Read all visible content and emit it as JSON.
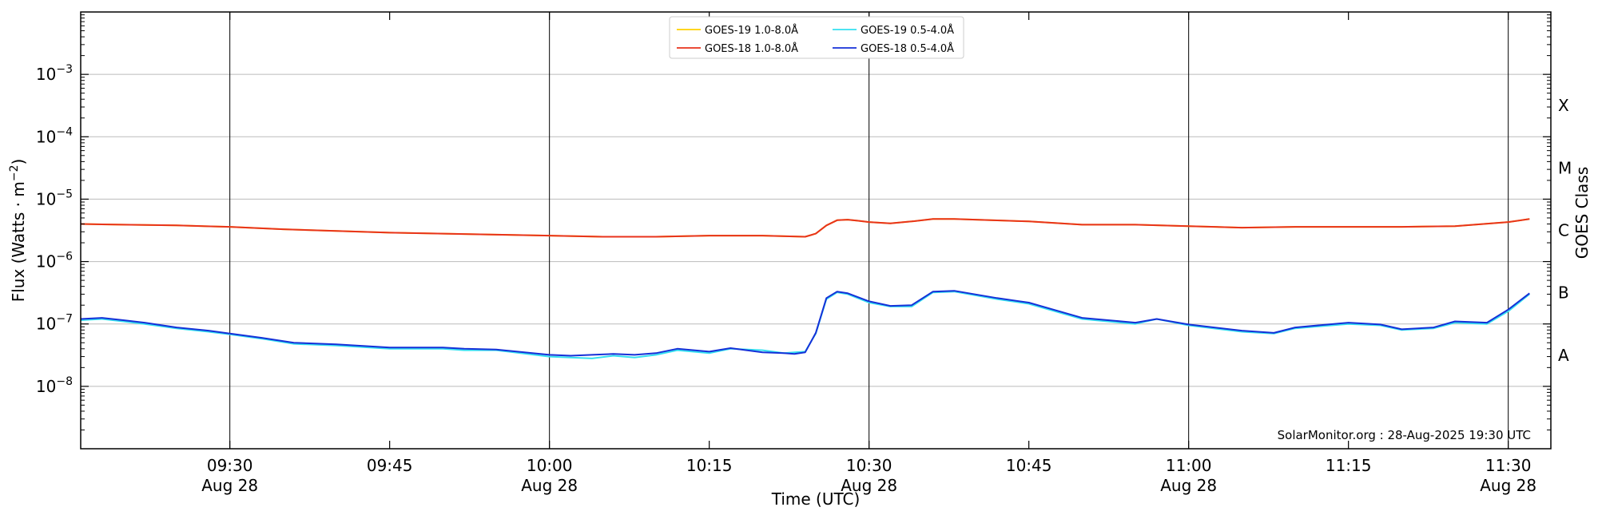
{
  "chart_data": {
    "type": "line",
    "xlabel": "Time (UTC)",
    "ylabel_left": "Flux (Watts · m",
    "ylabel_left_sup": "−2",
    "ylabel_left_end": ")",
    "ylabel_right": "GOES Class",
    "y_scale": "log",
    "ylim": [
      1e-09,
      0.01
    ],
    "xlim": [
      "09:16",
      "11:34"
    ],
    "y_tick_labels": [
      {
        "base": "10",
        "exp": "−3",
        "value": 0.001
      },
      {
        "base": "10",
        "exp": "−4",
        "value": 0.0001
      },
      {
        "base": "10",
        "exp": "−5",
        "value": 1e-05
      },
      {
        "base": "10",
        "exp": "−6",
        "value": 1e-06
      },
      {
        "base": "10",
        "exp": "−7",
        "value": 1e-07
      },
      {
        "base": "10",
        "exp": "−8",
        "value": 1e-08
      }
    ],
    "x_ticks": [
      {
        "time": "09:30",
        "label": "09:30",
        "date": "Aug 28",
        "major": true
      },
      {
        "time": "09:45",
        "label": "09:45",
        "date": "",
        "major": false
      },
      {
        "time": "10:00",
        "label": "10:00",
        "date": "Aug 28",
        "major": true
      },
      {
        "time": "10:15",
        "label": "10:15",
        "date": "",
        "major": false
      },
      {
        "time": "10:30",
        "label": "10:30",
        "date": "Aug 28",
        "major": true
      },
      {
        "time": "10:45",
        "label": "10:45",
        "date": "",
        "major": false
      },
      {
        "time": "11:00",
        "label": "11:00",
        "date": "Aug 28",
        "major": true
      },
      {
        "time": "11:15",
        "label": "11:15",
        "date": "",
        "major": false
      },
      {
        "time": "11:30",
        "label": "11:30",
        "date": "Aug 28",
        "major": true
      }
    ],
    "goes_classes": [
      {
        "label": "X",
        "value": 0.0001
      },
      {
        "label": "M",
        "value": 1e-05
      },
      {
        "label": "C",
        "value": 1e-06
      },
      {
        "label": "B",
        "value": 1e-07
      },
      {
        "label": "A",
        "value": 1e-08
      }
    ],
    "grid": true,
    "legend_position": "top-center",
    "credit": "SolarMonitor.org : 28-Aug-2025 19:30 UTC",
    "series": [
      {
        "name": "GOES-19 1.0-8.0Å",
        "color": "#ffd000",
        "x": [
          "09:16",
          "09:20",
          "09:25",
          "09:30",
          "09:35",
          "09:40",
          "09:45",
          "09:50",
          "09:55",
          "10:00",
          "10:05",
          "10:10",
          "10:15",
          "10:20",
          "10:24",
          "10:25",
          "10:26",
          "10:27",
          "10:28",
          "10:29",
          "10:30",
          "10:32",
          "10:34",
          "10:36",
          "10:38",
          "10:40",
          "10:45",
          "10:50",
          "10:55",
          "11:00",
          "11:05",
          "11:10",
          "11:15",
          "11:20",
          "11:25",
          "11:30",
          "11:32"
        ],
        "values": [
          4e-06,
          3.9e-06,
          3.8e-06,
          3.6e-06,
          3.3e-06,
          3.1e-06,
          2.9e-06,
          2.8e-06,
          2.7e-06,
          2.6e-06,
          2.5e-06,
          2.5e-06,
          2.6e-06,
          2.6e-06,
          2.5e-06,
          2.8e-06,
          3.8e-06,
          4.6e-06,
          4.7e-06,
          4.5e-06,
          4.3e-06,
          4.1e-06,
          4.4e-06,
          4.8e-06,
          4.8e-06,
          4.7e-06,
          4.4e-06,
          3.9e-06,
          3.9e-06,
          3.7e-06,
          3.5e-06,
          3.6e-06,
          3.6e-06,
          3.6e-06,
          3.7e-06,
          4.3e-06,
          4.8e-06
        ]
      },
      {
        "name": "GOES-18 1.0-8.0Å",
        "color": "#e8331c",
        "x": [
          "09:16",
          "09:20",
          "09:25",
          "09:30",
          "09:35",
          "09:40",
          "09:45",
          "09:50",
          "09:55",
          "10:00",
          "10:05",
          "10:10",
          "10:15",
          "10:20",
          "10:24",
          "10:25",
          "10:26",
          "10:27",
          "10:28",
          "10:29",
          "10:30",
          "10:32",
          "10:34",
          "10:36",
          "10:38",
          "10:40",
          "10:45",
          "10:50",
          "10:55",
          "11:00",
          "11:05",
          "11:10",
          "11:15",
          "11:20",
          "11:25",
          "11:30",
          "11:32"
        ],
        "values": [
          4e-06,
          3.9e-06,
          3.8e-06,
          3.6e-06,
          3.3e-06,
          3.1e-06,
          2.9e-06,
          2.8e-06,
          2.7e-06,
          2.6e-06,
          2.5e-06,
          2.5e-06,
          2.6e-06,
          2.6e-06,
          2.5e-06,
          2.8e-06,
          3.8e-06,
          4.6e-06,
          4.7e-06,
          4.5e-06,
          4.3e-06,
          4.1e-06,
          4.4e-06,
          4.8e-06,
          4.8e-06,
          4.7e-06,
          4.4e-06,
          3.9e-06,
          3.9e-06,
          3.7e-06,
          3.5e-06,
          3.6e-06,
          3.6e-06,
          3.6e-06,
          3.7e-06,
          4.3e-06,
          4.8e-06
        ]
      },
      {
        "name": "GOES-19 0.5-4.0Å",
        "color": "#35e0f0",
        "x": [
          "09:16",
          "09:18",
          "09:20",
          "09:22",
          "09:25",
          "09:28",
          "09:30",
          "09:33",
          "09:36",
          "09:40",
          "09:45",
          "09:50",
          "09:52",
          "09:55",
          "10:00",
          "10:02",
          "10:04",
          "10:06",
          "10:08",
          "10:10",
          "10:12",
          "10:15",
          "10:17",
          "10:20",
          "10:22",
          "10:23",
          "10:24",
          "10:25",
          "10:26",
          "10:27",
          "10:28",
          "10:30",
          "10:32",
          "10:34",
          "10:36",
          "10:38",
          "10:42",
          "10:45",
          "10:50",
          "10:55",
          "10:57",
          "11:00",
          "11:05",
          "11:08",
          "11:10",
          "11:15",
          "11:18",
          "11:20",
          "11:23",
          "11:25",
          "11:28",
          "11:30",
          "11:32"
        ],
        "values": [
          1.15e-07,
          1.2e-07,
          1.1e-07,
          1e-07,
          8.5e-08,
          7.5e-08,
          6.8e-08,
          5.8e-08,
          4.8e-08,
          4.5e-08,
          4e-08,
          4e-08,
          3.8e-08,
          3.8e-08,
          3e-08,
          2.9e-08,
          2.8e-08,
          3.1e-08,
          2.9e-08,
          3.2e-08,
          3.8e-08,
          3.4e-08,
          4e-08,
          3.8e-08,
          3.4e-08,
          3.5e-08,
          3.6e-08,
          7e-08,
          2.5e-07,
          3.2e-07,
          3e-07,
          2.2e-07,
          1.9e-07,
          1.9e-07,
          3.2e-07,
          3.3e-07,
          2.5e-07,
          2.1e-07,
          1.2e-07,
          1e-07,
          1.2e-07,
          9.5e-08,
          7.5e-08,
          7e-08,
          8.5e-08,
          1e-07,
          9.5e-08,
          8e-08,
          8.5e-08,
          1.05e-07,
          1e-07,
          1.6e-07,
          3e-07
        ]
      },
      {
        "name": "GOES-18 0.5-4.0Å",
        "color": "#1530d8",
        "x": [
          "09:16",
          "09:18",
          "09:20",
          "09:22",
          "09:25",
          "09:28",
          "09:30",
          "09:33",
          "09:36",
          "09:40",
          "09:45",
          "09:50",
          "09:52",
          "09:55",
          "10:00",
          "10:02",
          "10:04",
          "10:06",
          "10:08",
          "10:10",
          "10:12",
          "10:15",
          "10:17",
          "10:20",
          "10:22",
          "10:23",
          "10:24",
          "10:25",
          "10:26",
          "10:27",
          "10:28",
          "10:30",
          "10:32",
          "10:34",
          "10:36",
          "10:38",
          "10:42",
          "10:45",
          "10:50",
          "10:55",
          "10:57",
          "11:00",
          "11:05",
          "11:08",
          "11:10",
          "11:15",
          "11:18",
          "11:20",
          "11:23",
          "11:25",
          "11:28",
          "11:30",
          "11:32"
        ],
        "values": [
          1.2e-07,
          1.25e-07,
          1.15e-07,
          1.05e-07,
          8.8e-08,
          7.8e-08,
          7e-08,
          6e-08,
          5e-08,
          4.7e-08,
          4.2e-08,
          4.2e-08,
          4e-08,
          3.9e-08,
          3.2e-08,
          3.1e-08,
          3.2e-08,
          3.3e-08,
          3.2e-08,
          3.4e-08,
          4e-08,
          3.6e-08,
          4.1e-08,
          3.5e-08,
          3.4e-08,
          3.3e-08,
          3.5e-08,
          7.2e-08,
          2.6e-07,
          3.3e-07,
          3.1e-07,
          2.3e-07,
          1.95e-07,
          2e-07,
          3.3e-07,
          3.4e-07,
          2.6e-07,
          2.2e-07,
          1.25e-07,
          1.05e-07,
          1.2e-07,
          9.8e-08,
          7.8e-08,
          7.2e-08,
          8.8e-08,
          1.05e-07,
          9.8e-08,
          8.2e-08,
          8.8e-08,
          1.1e-07,
          1.05e-07,
          1.7e-07,
          3.1e-07
        ]
      }
    ]
  }
}
